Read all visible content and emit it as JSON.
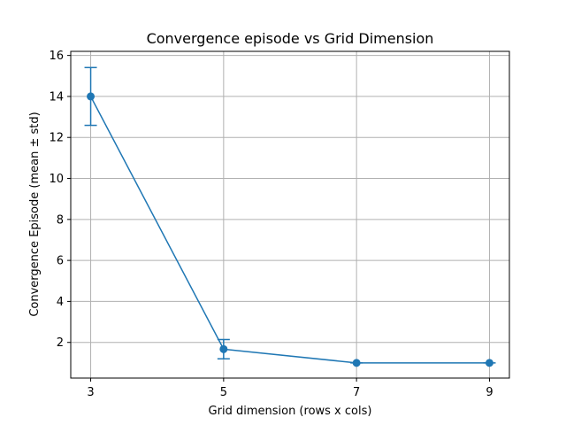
{
  "chart_data": {
    "type": "line",
    "title": "Convergence episode vs Grid Dimension",
    "xlabel": "Grid dimension (rows x cols)",
    "ylabel": "Convergence Episode (mean ± std)",
    "x": [
      3,
      5,
      7,
      9
    ],
    "x_tick_labels": [
      "3",
      "5",
      "7",
      "9"
    ],
    "series": [
      {
        "values": [
          14.0,
          1.67,
          1.0,
          1.0
        ],
        "std": [
          1.41,
          0.47,
          0.0,
          0.0
        ],
        "color": "#1f77b4",
        "marker": "circle"
      }
    ],
    "xlim": [
      2.7,
      9.3
    ],
    "ylim": [
      0.26,
      16.2
    ],
    "y_ticks": [
      2,
      4,
      6,
      8,
      10,
      12,
      14,
      16
    ],
    "y_tick_labels": [
      "2",
      "4",
      "6",
      "8",
      "10",
      "12",
      "14",
      "16"
    ],
    "grid": true,
    "legend": "none"
  }
}
